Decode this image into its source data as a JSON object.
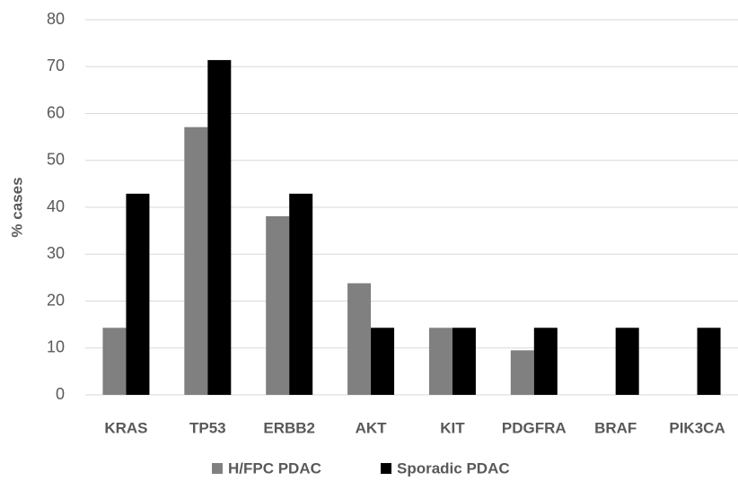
{
  "chart_data": {
    "type": "bar",
    "y_label": "% cases",
    "categories": [
      "KRAS",
      "TP53",
      "ERBB2",
      "AKT",
      "KIT",
      "PDGFRA",
      "BRAF",
      "PIK3CA"
    ],
    "series": [
      {
        "name": "H/FPC PDAC",
        "color": "#808080",
        "values": [
          14.3,
          57.1,
          38.1,
          23.8,
          14.3,
          9.5,
          0,
          0
        ]
      },
      {
        "name": "Sporadic PDAC",
        "color": "#000000",
        "values": [
          42.9,
          71.4,
          42.9,
          14.3,
          14.3,
          14.3,
          14.3,
          14.3
        ]
      }
    ],
    "ylim": [
      0,
      80
    ],
    "yticks": [
      0,
      10,
      20,
      30,
      40,
      50,
      60,
      70,
      80
    ],
    "grid": true,
    "legend": "bottom"
  }
}
